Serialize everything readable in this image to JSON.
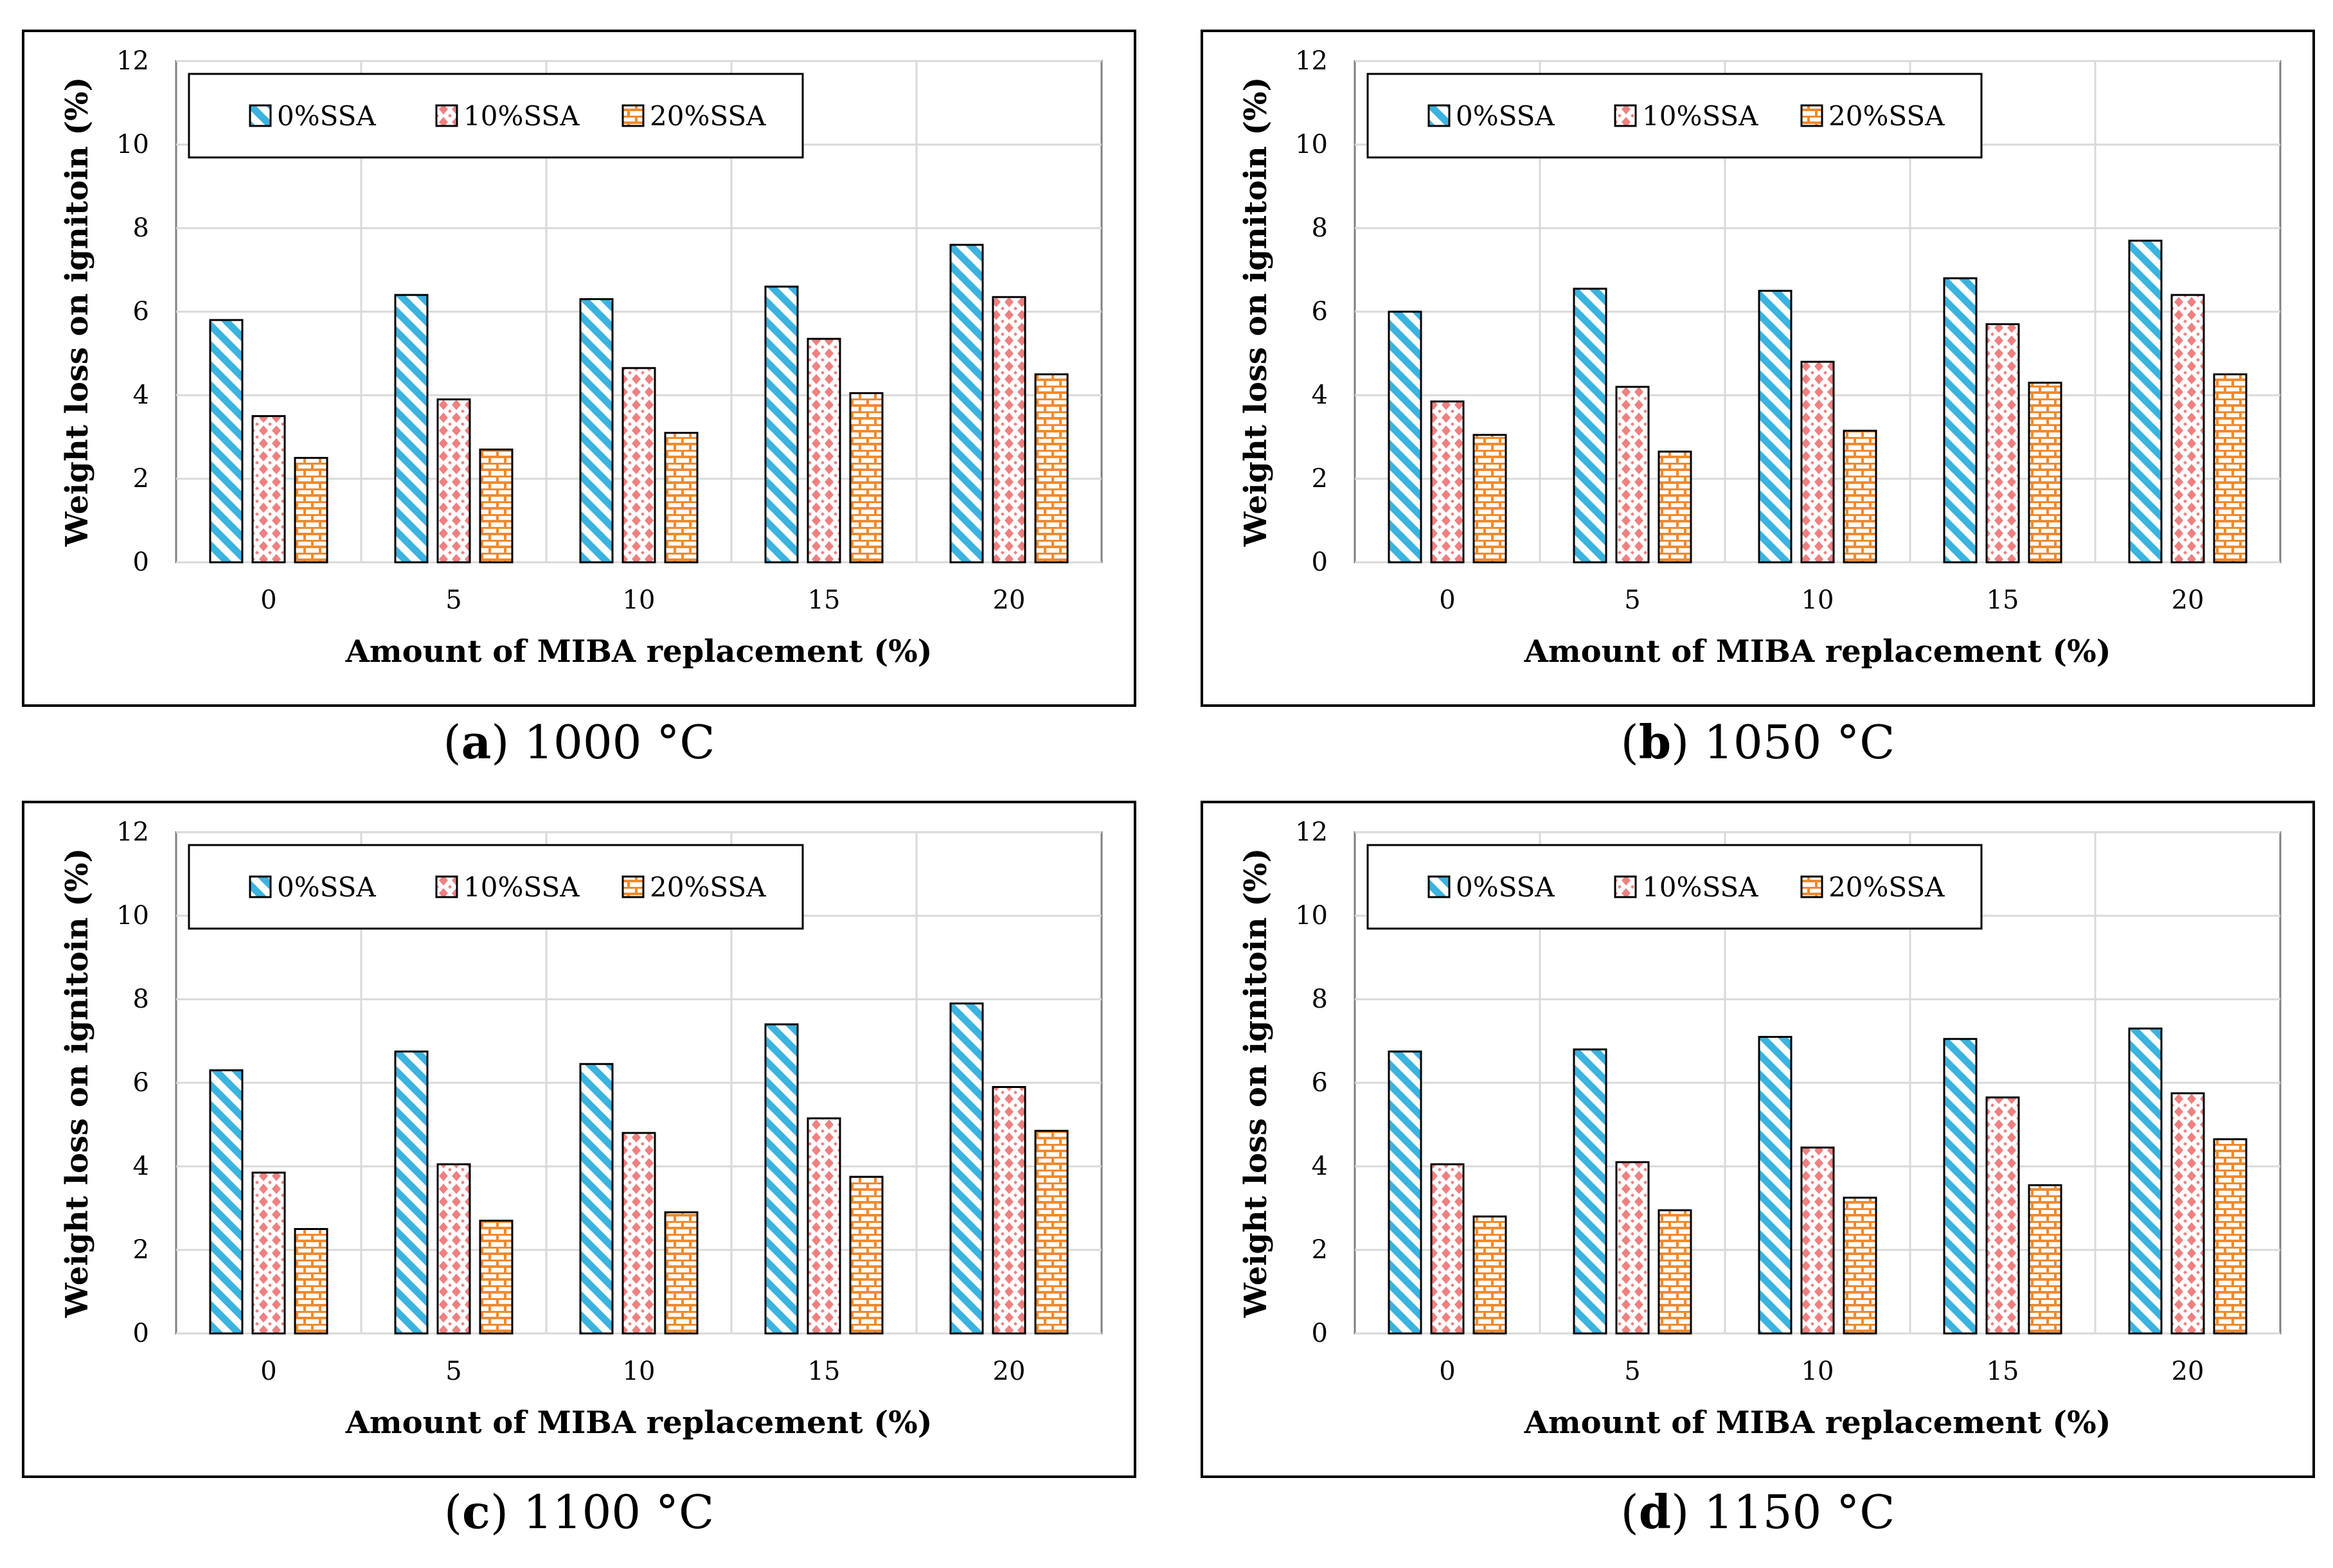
{
  "colors": {
    "series_0": "#3bb3df",
    "series_10": "#ef8080",
    "series_20": "#f08a2e",
    "grid": "#d9d9d9",
    "axis": "#808080",
    "frame": "#000000"
  },
  "chart_data": [
    {
      "type": "bar",
      "caption_letter": "a",
      "caption_text": " 1000 °C",
      "title": "",
      "xlabel": "Amount of MIBA replacement (%)",
      "ylabel": "Weight loss on ignitoin (%)",
      "ylim": [
        0,
        12
      ],
      "yticks": [
        "0",
        "2",
        "4",
        "6",
        "8",
        "10",
        "12"
      ],
      "categories": [
        "0",
        "5",
        "10",
        "15",
        "20"
      ],
      "grid": true,
      "legend_position": "top-left",
      "series": [
        {
          "name": "0%SSA",
          "values": [
            5.8,
            6.4,
            6.3,
            6.6,
            7.6
          ]
        },
        {
          "name": "10%SSA",
          "values": [
            3.5,
            3.9,
            4.65,
            5.35,
            6.35
          ]
        },
        {
          "name": "20%SSA",
          "values": [
            2.5,
            2.7,
            3.1,
            4.05,
            4.5
          ]
        }
      ]
    },
    {
      "type": "bar",
      "caption_letter": "b",
      "caption_text": " 1050 °C",
      "title": "",
      "xlabel": "Amount of MIBA replacement (%)",
      "ylabel": "Weight loss on ignitoin (%)",
      "ylim": [
        0,
        12
      ],
      "yticks": [
        "0",
        "2",
        "4",
        "6",
        "8",
        "10",
        "12"
      ],
      "categories": [
        "0",
        "5",
        "10",
        "15",
        "20"
      ],
      "grid": true,
      "legend_position": "top-left",
      "series": [
        {
          "name": "0%SSA",
          "values": [
            6.0,
            6.55,
            6.5,
            6.8,
            7.7
          ]
        },
        {
          "name": "10%SSA",
          "values": [
            3.85,
            4.2,
            4.8,
            5.7,
            6.4
          ]
        },
        {
          "name": "20%SSA",
          "values": [
            3.05,
            2.65,
            3.15,
            4.3,
            4.5
          ]
        }
      ]
    },
    {
      "type": "bar",
      "caption_letter": "c",
      "caption_text": " 1100 °C",
      "title": "",
      "xlabel": "Amount of MIBA replacement (%)",
      "ylabel": "Weight loss on ignitoin (%)",
      "ylim": [
        0,
        12
      ],
      "yticks": [
        "0",
        "2",
        "4",
        "6",
        "8",
        "10",
        "12"
      ],
      "categories": [
        "0",
        "5",
        "10",
        "15",
        "20"
      ],
      "grid": true,
      "legend_position": "top-left",
      "series": [
        {
          "name": "0%SSA",
          "values": [
            6.3,
            6.75,
            6.45,
            7.4,
            7.9
          ]
        },
        {
          "name": "10%SSA",
          "values": [
            3.85,
            4.05,
            4.8,
            5.15,
            5.9
          ]
        },
        {
          "name": "20%SSA",
          "values": [
            2.5,
            2.7,
            2.9,
            3.75,
            4.85
          ]
        }
      ]
    },
    {
      "type": "bar",
      "caption_letter": "d",
      "caption_text": " 1150 °C",
      "title": "",
      "xlabel": "Amount of MIBA replacement (%)",
      "ylabel": "Weight loss on ignitoin (%)",
      "ylim": [
        0,
        12
      ],
      "yticks": [
        "0",
        "2",
        "4",
        "6",
        "8",
        "10",
        "12"
      ],
      "categories": [
        "0",
        "5",
        "10",
        "15",
        "20"
      ],
      "grid": true,
      "legend_position": "top-left",
      "series": [
        {
          "name": "0%SSA",
          "values": [
            6.75,
            6.8,
            7.1,
            7.05,
            7.3
          ]
        },
        {
          "name": "10%SSA",
          "values": [
            4.05,
            4.1,
            4.45,
            5.65,
            5.75
          ]
        },
        {
          "name": "20%SSA",
          "values": [
            2.8,
            2.95,
            3.25,
            3.55,
            4.65
          ]
        }
      ]
    }
  ]
}
